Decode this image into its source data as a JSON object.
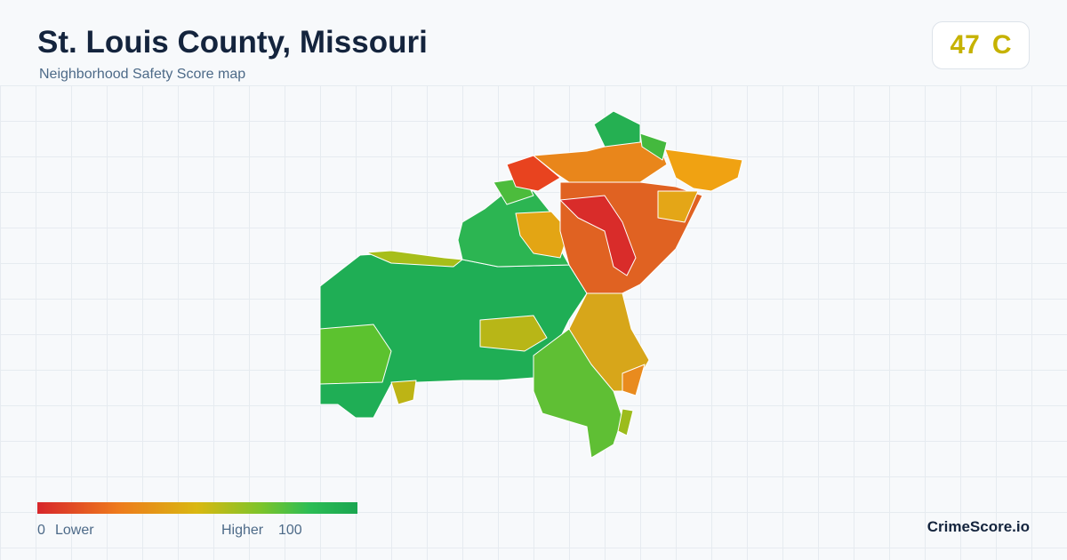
{
  "header": {
    "title": "St. Louis County, Missouri",
    "subtitle": "Neighborhood Safety Score map"
  },
  "score": {
    "value": 47,
    "grade": "C"
  },
  "legend": {
    "min": 0,
    "min_label": "Lower",
    "max_label": "Higher",
    "max": 100
  },
  "brand": "CrimeScore.io"
}
